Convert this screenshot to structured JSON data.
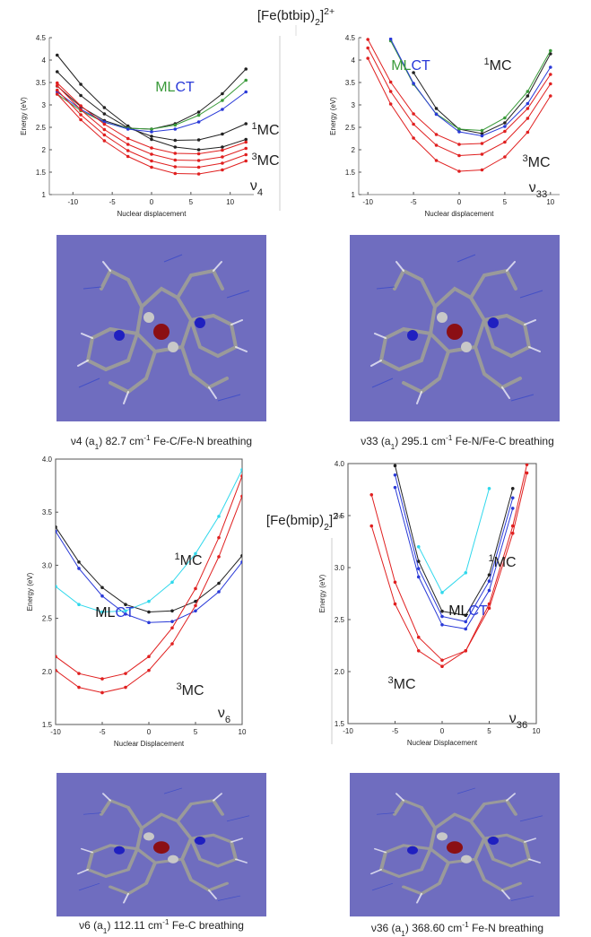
{
  "panel_titles": [
    {
      "parts": [
        {
          "text": "[Fe(btbip)"
        },
        {
          "text": "2",
          "style": "sub"
        },
        {
          "text": "]"
        },
        {
          "text": "2+",
          "style": "sup"
        }
      ]
    },
    {
      "parts": [
        {
          "text": "[Fe(bmip)"
        },
        {
          "text": "2",
          "style": "sub"
        },
        {
          "text": "]"
        },
        {
          "text": "2+",
          "style": "sup"
        }
      ]
    }
  ],
  "images": [
    {
      "caption": {
        "parts": [
          {
            "text": "ν4 (a"
          },
          {
            "text": "1",
            "style": "sub"
          },
          {
            "text": ") 82.7 cm"
          },
          {
            "text": "-1",
            "style": "sup"
          },
          {
            "text": " Fe-C/Fe-N breathing"
          }
        ]
      }
    },
    {
      "caption": {
        "parts": [
          {
            "text": "ν33 (a"
          },
          {
            "text": "1",
            "style": "sub"
          },
          {
            "text": ") 295.1 cm"
          },
          {
            "text": "-1",
            "style": "sup"
          },
          {
            "text": " Fe-N/Fe-C breathing"
          }
        ]
      }
    },
    {
      "caption": {
        "parts": [
          {
            "text": "ν6 (a"
          },
          {
            "text": "1",
            "style": "sub"
          },
          {
            "text": ") 112.11 cm"
          },
          {
            "text": "-1",
            "style": "sup"
          },
          {
            "text": " Fe-C breathing"
          }
        ]
      }
    },
    {
      "caption": {
        "parts": [
          {
            "text": "ν36 (a"
          },
          {
            "text": "1",
            "style": "sub"
          },
          {
            "text": ") 368.60 cm"
          },
          {
            "text": "-1",
            "style": "sup"
          },
          {
            "text": " Fe-N breathing"
          }
        ]
      }
    }
  ],
  "chart_data": [
    {
      "type": "line",
      "x_label": "Nuclear displacement",
      "y_label": "Energy (eV)",
      "xlim": [
        -13,
        13
      ],
      "ylim": [
        1,
        4.5
      ],
      "xticks": [
        -10,
        -5,
        0,
        5,
        10
      ],
      "yticks": [
        1,
        1.5,
        2,
        2.5,
        3,
        3.5,
        4,
        4.5
      ],
      "x": [
        -12,
        -9,
        -6,
        -3,
        0,
        3,
        6,
        9,
        12
      ],
      "series": [
        {
          "color": "#222222",
          "values": [
            4.11,
            3.46,
            2.94,
            2.53,
            2.23,
            2.06,
            2.0,
            2.06,
            2.23
          ]
        },
        {
          "color": "#222222",
          "values": [
            3.74,
            3.21,
            2.8,
            2.49,
            2.3,
            2.21,
            2.22,
            2.35,
            2.58
          ]
        },
        {
          "color": "#222222",
          "values": [
            3.42,
            2.96,
            2.65,
            2.48,
            2.46,
            2.58,
            2.84,
            3.25,
            3.8
          ]
        },
        {
          "color": "#3a9a3a",
          "values": [
            3.24,
            2.87,
            2.61,
            2.48,
            2.46,
            2.55,
            2.77,
            3.1,
            3.55
          ]
        },
        {
          "color": "#2a3ad8",
          "values": [
            3.29,
            2.9,
            2.62,
            2.46,
            2.4,
            2.46,
            2.62,
            2.9,
            3.29
          ]
        },
        {
          "color": "#e02020",
          "values": [
            3.49,
            2.98,
            2.57,
            2.25,
            2.04,
            1.92,
            1.91,
            1.99,
            2.17
          ]
        },
        {
          "color": "#e02020",
          "values": [
            3.43,
            2.89,
            2.45,
            2.12,
            1.9,
            1.77,
            1.76,
            1.84,
            2.03
          ]
        },
        {
          "color": "#e02020",
          "values": [
            3.33,
            2.78,
            2.33,
            1.98,
            1.75,
            1.62,
            1.61,
            1.7,
            1.89
          ]
        },
        {
          "color": "#e02020",
          "values": [
            3.24,
            2.67,
            2.2,
            1.85,
            1.61,
            1.47,
            1.46,
            1.55,
            1.75
          ]
        }
      ],
      "annotations": [
        {
          "parts": [
            {
              "text": "ML",
              "color": "#3a9a3a"
            },
            {
              "text": "CT",
              "color": "#2a3ad8"
            }
          ]
        },
        {
          "color": "#444444",
          "parts": [
            {
              "text": "1",
              "style": "sup"
            },
            {
              "text": "MC"
            }
          ]
        },
        {
          "color": "#e02020",
          "parts": [
            {
              "text": "3",
              "style": "sup"
            },
            {
              "text": "MC"
            }
          ]
        },
        {
          "color": "#111111",
          "parts": [
            {
              "text": "ν"
            },
            {
              "text": "4",
              "style": "sub"
            }
          ]
        }
      ]
    },
    {
      "type": "line",
      "x_label": "Nuclear displacement",
      "y_label": "Energy (eV)",
      "xlim": [
        -11,
        11
      ],
      "ylim": [
        1,
        4.5
      ],
      "xticks": [
        -10,
        -5,
        0,
        5,
        10
      ],
      "yticks": [
        1,
        1.5,
        2,
        2.5,
        3,
        3.5,
        4,
        4.5
      ],
      "x": [
        -10,
        -7.5,
        -5,
        -2.5,
        0,
        2.5,
        5,
        7.5,
        10
      ],
      "series": [
        {
          "color": "#222222",
          "values": [
            null,
            null,
            3.72,
            2.92,
            2.46,
            2.36,
            2.6,
            3.2,
            4.14
          ]
        },
        {
          "color": "#3a9a3a",
          "values": [
            null,
            4.43,
            3.46,
            2.8,
            2.46,
            2.43,
            2.71,
            3.3,
            4.21
          ]
        },
        {
          "color": "#2a3ad8",
          "values": [
            null,
            4.47,
            3.48,
            2.79,
            2.4,
            2.31,
            2.52,
            3.03,
            3.84
          ]
        },
        {
          "color": "#e02020",
          "values": [
            4.46,
            3.51,
            2.8,
            2.34,
            2.12,
            2.14,
            2.41,
            2.92,
            3.68
          ]
        },
        {
          "color": "#e02020",
          "values": [
            4.27,
            3.3,
            2.57,
            2.1,
            1.87,
            1.9,
            2.17,
            2.7,
            3.47
          ]
        },
        {
          "color": "#e02020",
          "values": [
            4.04,
            3.02,
            2.26,
            1.76,
            1.52,
            1.55,
            1.84,
            2.39,
            3.2
          ]
        }
      ],
      "annotations": [
        {
          "parts": [
            {
              "text": "ML",
              "color": "#3a9a3a"
            },
            {
              "text": "CT",
              "color": "#2a3ad8"
            }
          ]
        },
        {
          "color": "#444444",
          "parts": [
            {
              "text": "1",
              "style": "sup"
            },
            {
              "text": "MC"
            }
          ]
        },
        {
          "color": "#e02020",
          "parts": [
            {
              "text": "3",
              "style": "sup"
            },
            {
              "text": "MC"
            }
          ]
        },
        {
          "color": "#111111",
          "parts": [
            {
              "text": "ν"
            },
            {
              "text": "33",
              "style": "sub"
            }
          ]
        }
      ]
    },
    {
      "type": "line",
      "x_label": "Nuclear Displacement",
      "y_label": "Energy (eV)",
      "xlim": [
        -10,
        10
      ],
      "ylim": [
        1.5,
        4.0
      ],
      "xticks": [
        -10,
        -5,
        0,
        5,
        10
      ],
      "yticks": [
        1.5,
        {
          "value": 2,
          "label": "2.0"
        },
        2.5,
        {
          "value": 3,
          "label": "3.0"
        },
        3.5,
        {
          "value": 4,
          "label": "4.0"
        }
      ],
      "x": [
        -10,
        -7.5,
        -5,
        -2.5,
        0,
        2.5,
        5,
        7.5,
        10
      ],
      "series": [
        {
          "color": "#222222",
          "values": [
            3.36,
            3.03,
            2.79,
            2.63,
            2.56,
            2.57,
            2.66,
            2.83,
            3.09
          ]
        },
        {
          "color": "#2a3ad8",
          "values": [
            3.32,
            2.97,
            2.71,
            2.54,
            2.46,
            2.47,
            2.57,
            2.75,
            3.03
          ]
        },
        {
          "color": "#30d8ec",
          "values": [
            2.8,
            2.63,
            2.56,
            2.57,
            2.66,
            2.84,
            3.11,
            3.46,
            3.9
          ]
        },
        {
          "color": "#e02020",
          "values": [
            2.14,
            1.98,
            1.93,
            1.98,
            2.14,
            2.41,
            2.78,
            3.26,
            3.84
          ]
        },
        {
          "color": "#e02020",
          "values": [
            2.01,
            1.85,
            1.8,
            1.85,
            2.01,
            2.26,
            2.62,
            3.08,
            3.65
          ]
        }
      ],
      "annotations": [
        {
          "color": "#30c8e0",
          "parts": [
            {
              "text": "1",
              "style": "sup"
            },
            {
              "text": "MC"
            }
          ]
        },
        {
          "parts": [
            {
              "text": "ML",
              "color": "#111111"
            },
            {
              "text": "CT",
              "color": "#2a3ad8"
            }
          ]
        },
        {
          "color": "#e02020",
          "parts": [
            {
              "text": "3",
              "style": "sup"
            },
            {
              "text": "MC"
            }
          ]
        },
        {
          "color": "#111111",
          "parts": [
            {
              "text": "ν"
            },
            {
              "text": "6",
              "style": "sub"
            }
          ]
        }
      ]
    },
    {
      "type": "line",
      "x_label": "Nuclear Displacement",
      "y_label": "Energy (eV)",
      "xlim": [
        -10,
        10
      ],
      "ylim": [
        1.5,
        4.0
      ],
      "xticks": [
        -10,
        -5,
        0,
        5,
        10
      ],
      "yticks": [
        1.5,
        {
          "value": 2,
          "label": "2.0"
        },
        2.5,
        {
          "value": 3,
          "label": "3.0"
        },
        3.5,
        {
          "value": 4,
          "label": "4.0"
        }
      ],
      "x": [
        -7.5,
        -5,
        -2.5,
        0,
        2.5,
        5,
        7.5,
        9
      ],
      "series": [
        {
          "color": "#e02020",
          "values": [
            3.4,
            2.65,
            2.2,
            2.05,
            2.2,
            2.65,
            3.4,
            3.99
          ]
        },
        {
          "color": "#e02020",
          "values": [
            3.7,
            2.86,
            2.33,
            2.11,
            2.2,
            2.61,
            3.33,
            3.91
          ]
        },
        {
          "color": "#222222",
          "values": [
            null,
            3.98,
            3.06,
            2.58,
            2.54,
            2.93,
            3.76,
            null
          ]
        },
        {
          "color": "#2a3ad8",
          "values": [
            null,
            3.89,
            2.99,
            2.53,
            2.48,
            2.87,
            3.67,
            null
          ]
        },
        {
          "color": "#2a3ad8",
          "values": [
            null,
            3.77,
            2.91,
            2.45,
            2.41,
            2.78,
            3.57,
            null
          ]
        },
        {
          "color": "#30d8ec",
          "values": [
            null,
            null,
            3.2,
            2.76,
            2.95,
            3.76,
            null,
            null
          ]
        }
      ],
      "annotations": [
        {
          "color": "#30c8e0",
          "parts": [
            {
              "text": "1",
              "style": "sup"
            },
            {
              "text": "MC"
            }
          ]
        },
        {
          "parts": [
            {
              "text": "ML",
              "color": "#111111"
            },
            {
              "text": "CT",
              "color": "#2a3ad8"
            }
          ]
        },
        {
          "color": "#e02020",
          "parts": [
            {
              "text": "3",
              "style": "sup"
            },
            {
              "text": "MC"
            }
          ]
        },
        {
          "color": "#111111",
          "parts": [
            {
              "text": "ν"
            },
            {
              "text": "36",
              "style": "sub"
            }
          ]
        }
      ]
    }
  ]
}
